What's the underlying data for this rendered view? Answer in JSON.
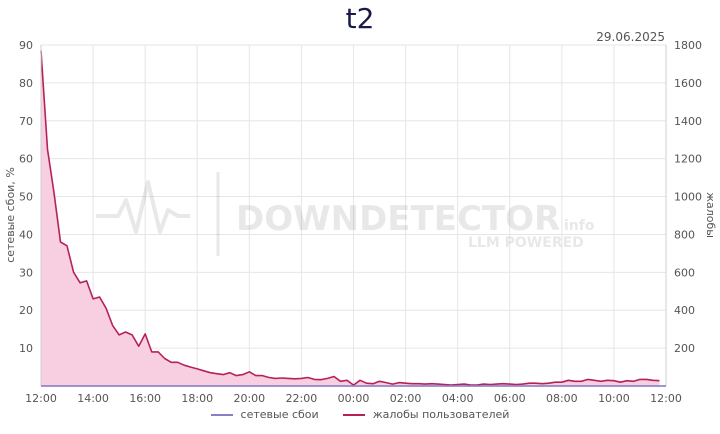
{
  "header": {
    "title": "t2",
    "date": "29.06.2025"
  },
  "watermark": {
    "main": "DOWNDETECTOR",
    "suffix": "info",
    "sub": "LLM POWERED"
  },
  "colors": {
    "complaints_line": "#b5225a",
    "complaints_fill": "#f7cfe0",
    "failures_line": "#8a7fc7",
    "grid": "#e6e6e6",
    "axis": "#8a7fc7"
  },
  "chart_data": {
    "type": "area",
    "title": "t2",
    "y_left_label": "сетевые сбои, %",
    "y_right_label": "жалобы",
    "y_left_lim": [
      0,
      90
    ],
    "y_left_ticks": [
      10,
      20,
      30,
      40,
      50,
      60,
      70,
      80,
      90
    ],
    "y_right_lim": [
      0,
      1800
    ],
    "y_right_ticks": [
      200,
      400,
      600,
      800,
      1000,
      1200,
      1400,
      1600,
      1800
    ],
    "x_lim_hours": [
      12,
      36
    ],
    "x_ticks": [
      "12:00",
      "14:00",
      "16:00",
      "18:00",
      "20:00",
      "22:00",
      "00:00",
      "02:00",
      "04:00",
      "06:00",
      "08:00",
      "10:00",
      "12:00"
    ],
    "grid": true,
    "legend_position": "bottom",
    "series": [
      {
        "name": "сетевые сбои",
        "axis": "left",
        "x_hours": [
          12,
          36
        ],
        "values": [
          0,
          0
        ]
      },
      {
        "name": "жалобы пользователей",
        "axis": "right",
        "x_hours": [
          12.0,
          12.25,
          12.5,
          12.75,
          13.0,
          13.25,
          13.5,
          13.75,
          14.0,
          14.25,
          14.5,
          14.75,
          15.0,
          15.25,
          15.5,
          15.75,
          16.0,
          16.25,
          16.5,
          16.75,
          17.0,
          17.25,
          17.5,
          17.75,
          18.0,
          18.25,
          18.5,
          18.75,
          19.0,
          19.25,
          19.5,
          19.75,
          20.0,
          20.25,
          20.5,
          20.75,
          21.0,
          21.25,
          21.5,
          21.75,
          22.0,
          22.25,
          22.5,
          22.75,
          23.0,
          23.25,
          23.5,
          23.75,
          24.0,
          24.25,
          24.5,
          24.75,
          25.0,
          25.25,
          25.5,
          25.75,
          26.0,
          26.25,
          26.5,
          26.75,
          27.0,
          27.25,
          27.5,
          27.75,
          28.0,
          28.25,
          28.5,
          28.75,
          29.0,
          29.25,
          29.5,
          29.75,
          30.0,
          30.25,
          30.5,
          30.75,
          31.0,
          31.25,
          31.5,
          31.75,
          32.0,
          32.25,
          32.5,
          32.75,
          33.0,
          33.25,
          33.5,
          33.75,
          34.0,
          34.25,
          34.5,
          34.75,
          35.0,
          35.25,
          35.5,
          35.75
        ],
        "values": [
          1770,
          1250,
          1020,
          760,
          740,
          600,
          545,
          555,
          460,
          470,
          410,
          320,
          270,
          285,
          270,
          210,
          275,
          180,
          180,
          145,
          125,
          125,
          110,
          100,
          90,
          80,
          70,
          65,
          60,
          70,
          55,
          60,
          75,
          55,
          55,
          45,
          40,
          42,
          40,
          38,
          40,
          45,
          35,
          33,
          40,
          50,
          25,
          30,
          5,
          30,
          15,
          12,
          25,
          18,
          10,
          18,
          15,
          12,
          12,
          10,
          12,
          10,
          8,
          5,
          8,
          10,
          5,
          5,
          10,
          8,
          10,
          12,
          10,
          8,
          10,
          15,
          15,
          12,
          15,
          20,
          20,
          30,
          25,
          25,
          35,
          30,
          25,
          30,
          28,
          20,
          28,
          25,
          35,
          35,
          30,
          28
        ]
      }
    ]
  }
}
